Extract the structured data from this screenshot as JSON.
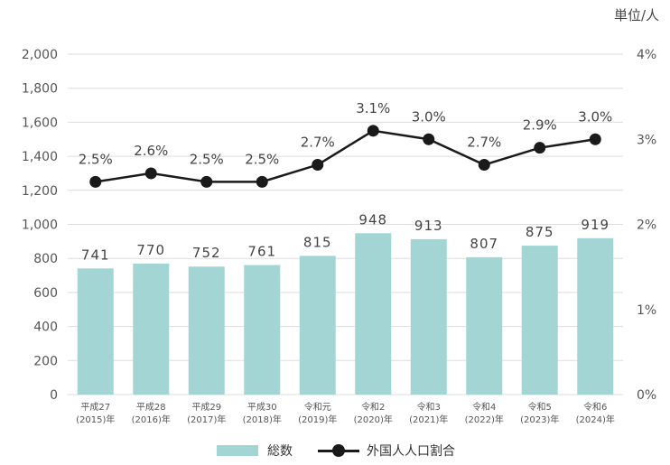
{
  "unit_label": "単位/人",
  "legend": {
    "bar_label": "総数",
    "line_label": "外国人人口割合"
  },
  "colors": {
    "bar": "#a3d5d4",
    "line": "#1a1a1a",
    "grid": "#dddddd"
  },
  "chart_data": {
    "type": "bar",
    "categories": [
      [
        "平成27",
        "(2015)年"
      ],
      [
        "平成28",
        "(2016)年"
      ],
      [
        "平成29",
        "(2017)年"
      ],
      [
        "平成30",
        "(2018)年"
      ],
      [
        "令和元",
        "(2019)年"
      ],
      [
        "令和2",
        "(2020)年"
      ],
      [
        "令和3",
        "(2021)年"
      ],
      [
        "令和4",
        "(2022)年"
      ],
      [
        "令和5",
        "(2023)年"
      ],
      [
        "令和6",
        "(2024)年"
      ]
    ],
    "series": [
      {
        "name": "総数",
        "type": "bar",
        "axis": "left",
        "values": [
          741,
          770,
          752,
          761,
          815,
          948,
          913,
          807,
          875,
          919
        ],
        "labels": [
          "741",
          "770",
          "752",
          "761",
          "815",
          "948",
          "913",
          "807",
          "875",
          "919"
        ]
      },
      {
        "name": "外国人人口割合",
        "type": "line",
        "axis": "right",
        "values": [
          2.5,
          2.6,
          2.5,
          2.5,
          2.7,
          3.1,
          3.0,
          2.7,
          2.9,
          3.0
        ],
        "labels": [
          "2.5%",
          "2.6%",
          "2.5%",
          "2.5%",
          "2.7%",
          "3.1%",
          "3.0%",
          "2.7%",
          "2.9%",
          "3.0%"
        ]
      }
    ],
    "y_left": {
      "min": 0,
      "max": 2000,
      "ticks": [
        0,
        200,
        400,
        600,
        800,
        1000,
        1200,
        1400,
        1600,
        1800,
        2000
      ],
      "tick_labels": [
        "0",
        "200",
        "400",
        "600",
        "800",
        "1,000",
        "1,200",
        "1,400",
        "1,600",
        "1,800",
        "2,000"
      ]
    },
    "y_right": {
      "min": 0,
      "max": 4,
      "ticks": [
        0,
        1,
        2,
        3,
        4
      ],
      "tick_labels": [
        "0%",
        "1%",
        "2%",
        "3%",
        "4%"
      ]
    },
    "grid": true,
    "legend_position": "bottom"
  }
}
